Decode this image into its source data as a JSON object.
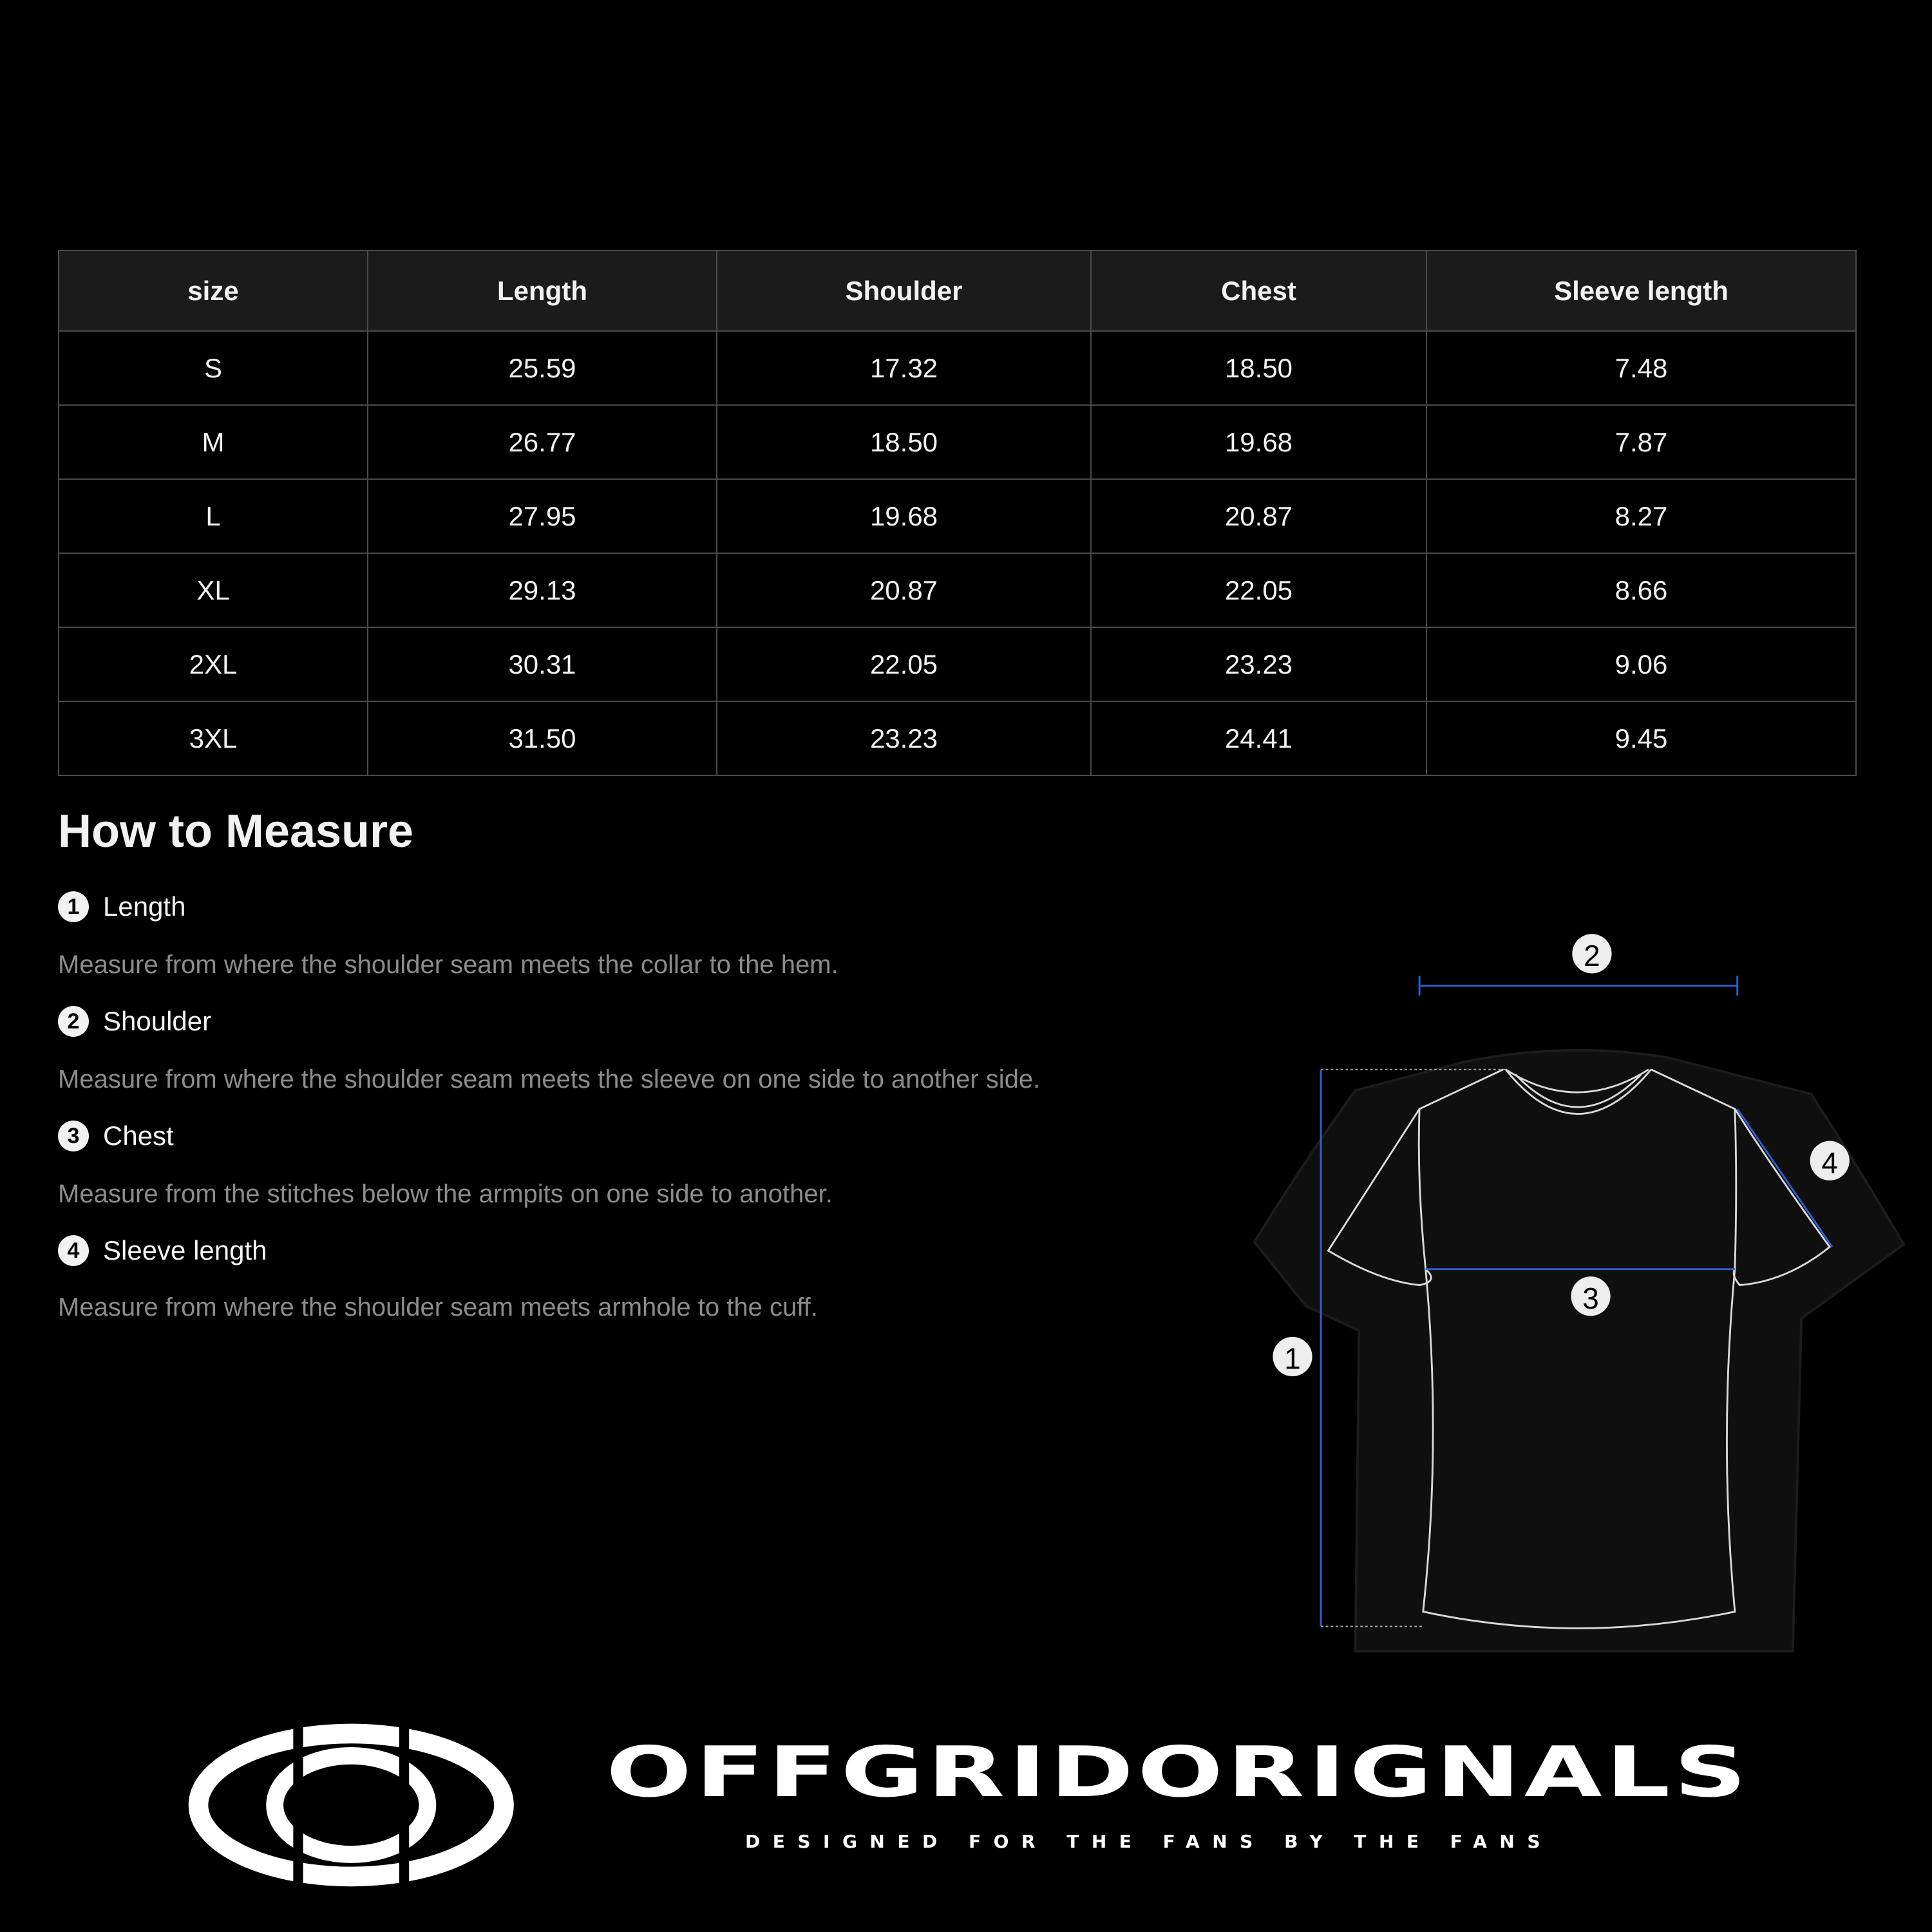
{
  "table": {
    "headers": [
      "size",
      "Length",
      "Shoulder",
      "Chest",
      "Sleeve length"
    ],
    "rows": [
      [
        "S",
        "25.59",
        "17.32",
        "18.50",
        "7.48"
      ],
      [
        "M",
        "26.77",
        "18.50",
        "19.68",
        "7.87"
      ],
      [
        "L",
        "27.95",
        "19.68",
        "20.87",
        "8.27"
      ],
      [
        "XL",
        "29.13",
        "20.87",
        "22.05",
        "8.66"
      ],
      [
        "2XL",
        "30.31",
        "22.05",
        "23.23",
        "9.06"
      ],
      [
        "3XL",
        "31.50",
        "23.23",
        "24.41",
        "9.45"
      ]
    ]
  },
  "how_to": {
    "title": "How to Measure",
    "items": [
      {
        "num": "1",
        "label": "Length",
        "desc": "Measure from where the shoulder seam meets the collar to the hem."
      },
      {
        "num": "2",
        "label": "Shoulder",
        "desc": "Measure from where the shoulder seam meets the sleeve on one side to another side."
      },
      {
        "num": "3",
        "label": "Chest",
        "desc": "Measure from the stitches below the armpits on one side to another."
      },
      {
        "num": "4",
        "label": "Sleeve length",
        "desc": "Measure from where the shoulder seam meets armhole to the cuff."
      }
    ]
  },
  "diagram": {
    "markers": [
      "1",
      "2",
      "3",
      "4"
    ],
    "measure_line_color": "#2f5fd0",
    "icon": "tshirt-diagram"
  },
  "brand": {
    "name": "OFFGRIDORIGNALS",
    "tagline": "DESIGNED FOR THE FANS BY THE FANS",
    "logo": "oval-eye-logo"
  }
}
